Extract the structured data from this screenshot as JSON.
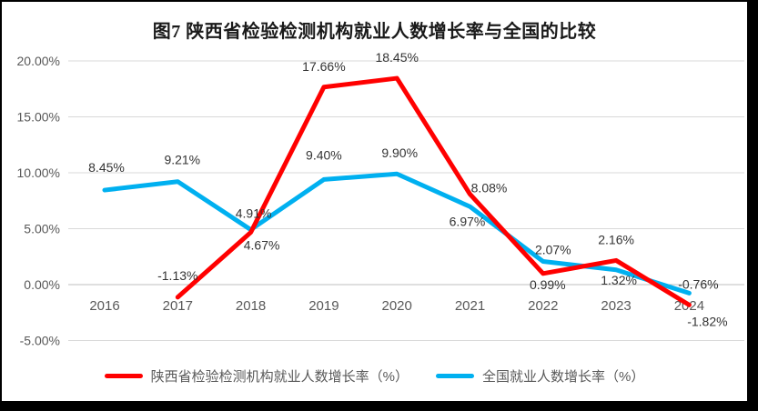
{
  "page": {
    "border_color": "#000000",
    "surface_color": "#ffffff"
  },
  "chart_data": {
    "type": "line",
    "title": "图7 陕西省检验检测机构就业人数增长率与全国的比较",
    "categories": [
      "2016",
      "2017",
      "2018",
      "2019",
      "2020",
      "2021",
      "2022",
      "2023",
      "2024"
    ],
    "series": [
      {
        "key": "shaanxi",
        "name": "陕西省检验检测机构就业人数增长率（%）",
        "color": "#FF0000",
        "values": [
          null,
          -1.13,
          4.67,
          17.66,
          18.45,
          8.08,
          0.99,
          2.16,
          -1.82
        ],
        "label_offsets": [
          null,
          [
            0,
            -24
          ],
          [
            12,
            14
          ],
          [
            0,
            -23
          ],
          [
            0,
            -23
          ],
          [
            21,
            -7
          ],
          [
            5,
            12
          ],
          [
            0,
            -23
          ],
          [
            20,
            18
          ]
        ]
      },
      {
        "key": "national",
        "name": "全国就业人数增长率（%）",
        "color": "#00B0F0",
        "values": [
          8.45,
          9.21,
          4.91,
          9.4,
          9.9,
          6.97,
          2.07,
          1.32,
          -0.76
        ],
        "label_offsets": [
          [
            2,
            -25
          ],
          [
            5,
            -24
          ],
          [
            3,
            -18
          ],
          [
            0,
            -27
          ],
          [
            3,
            -23
          ],
          [
            -3,
            16
          ],
          [
            11,
            -13
          ],
          [
            3,
            11
          ],
          [
            10,
            -10
          ]
        ]
      }
    ],
    "ylim": [
      -5,
      20
    ],
    "y_tick_step": 5,
    "y_tick_labels": [
      "20.00%",
      "15.00%",
      "10.00%",
      "5.00%",
      "0.00%",
      "-5.00%"
    ],
    "grid": true,
    "legend_position": "bottom",
    "axis_text_color": "#595959",
    "data_label_color": "#333333",
    "gridline_color": "#d9d9d9",
    "zero_line_color": "#bfbfbf"
  }
}
